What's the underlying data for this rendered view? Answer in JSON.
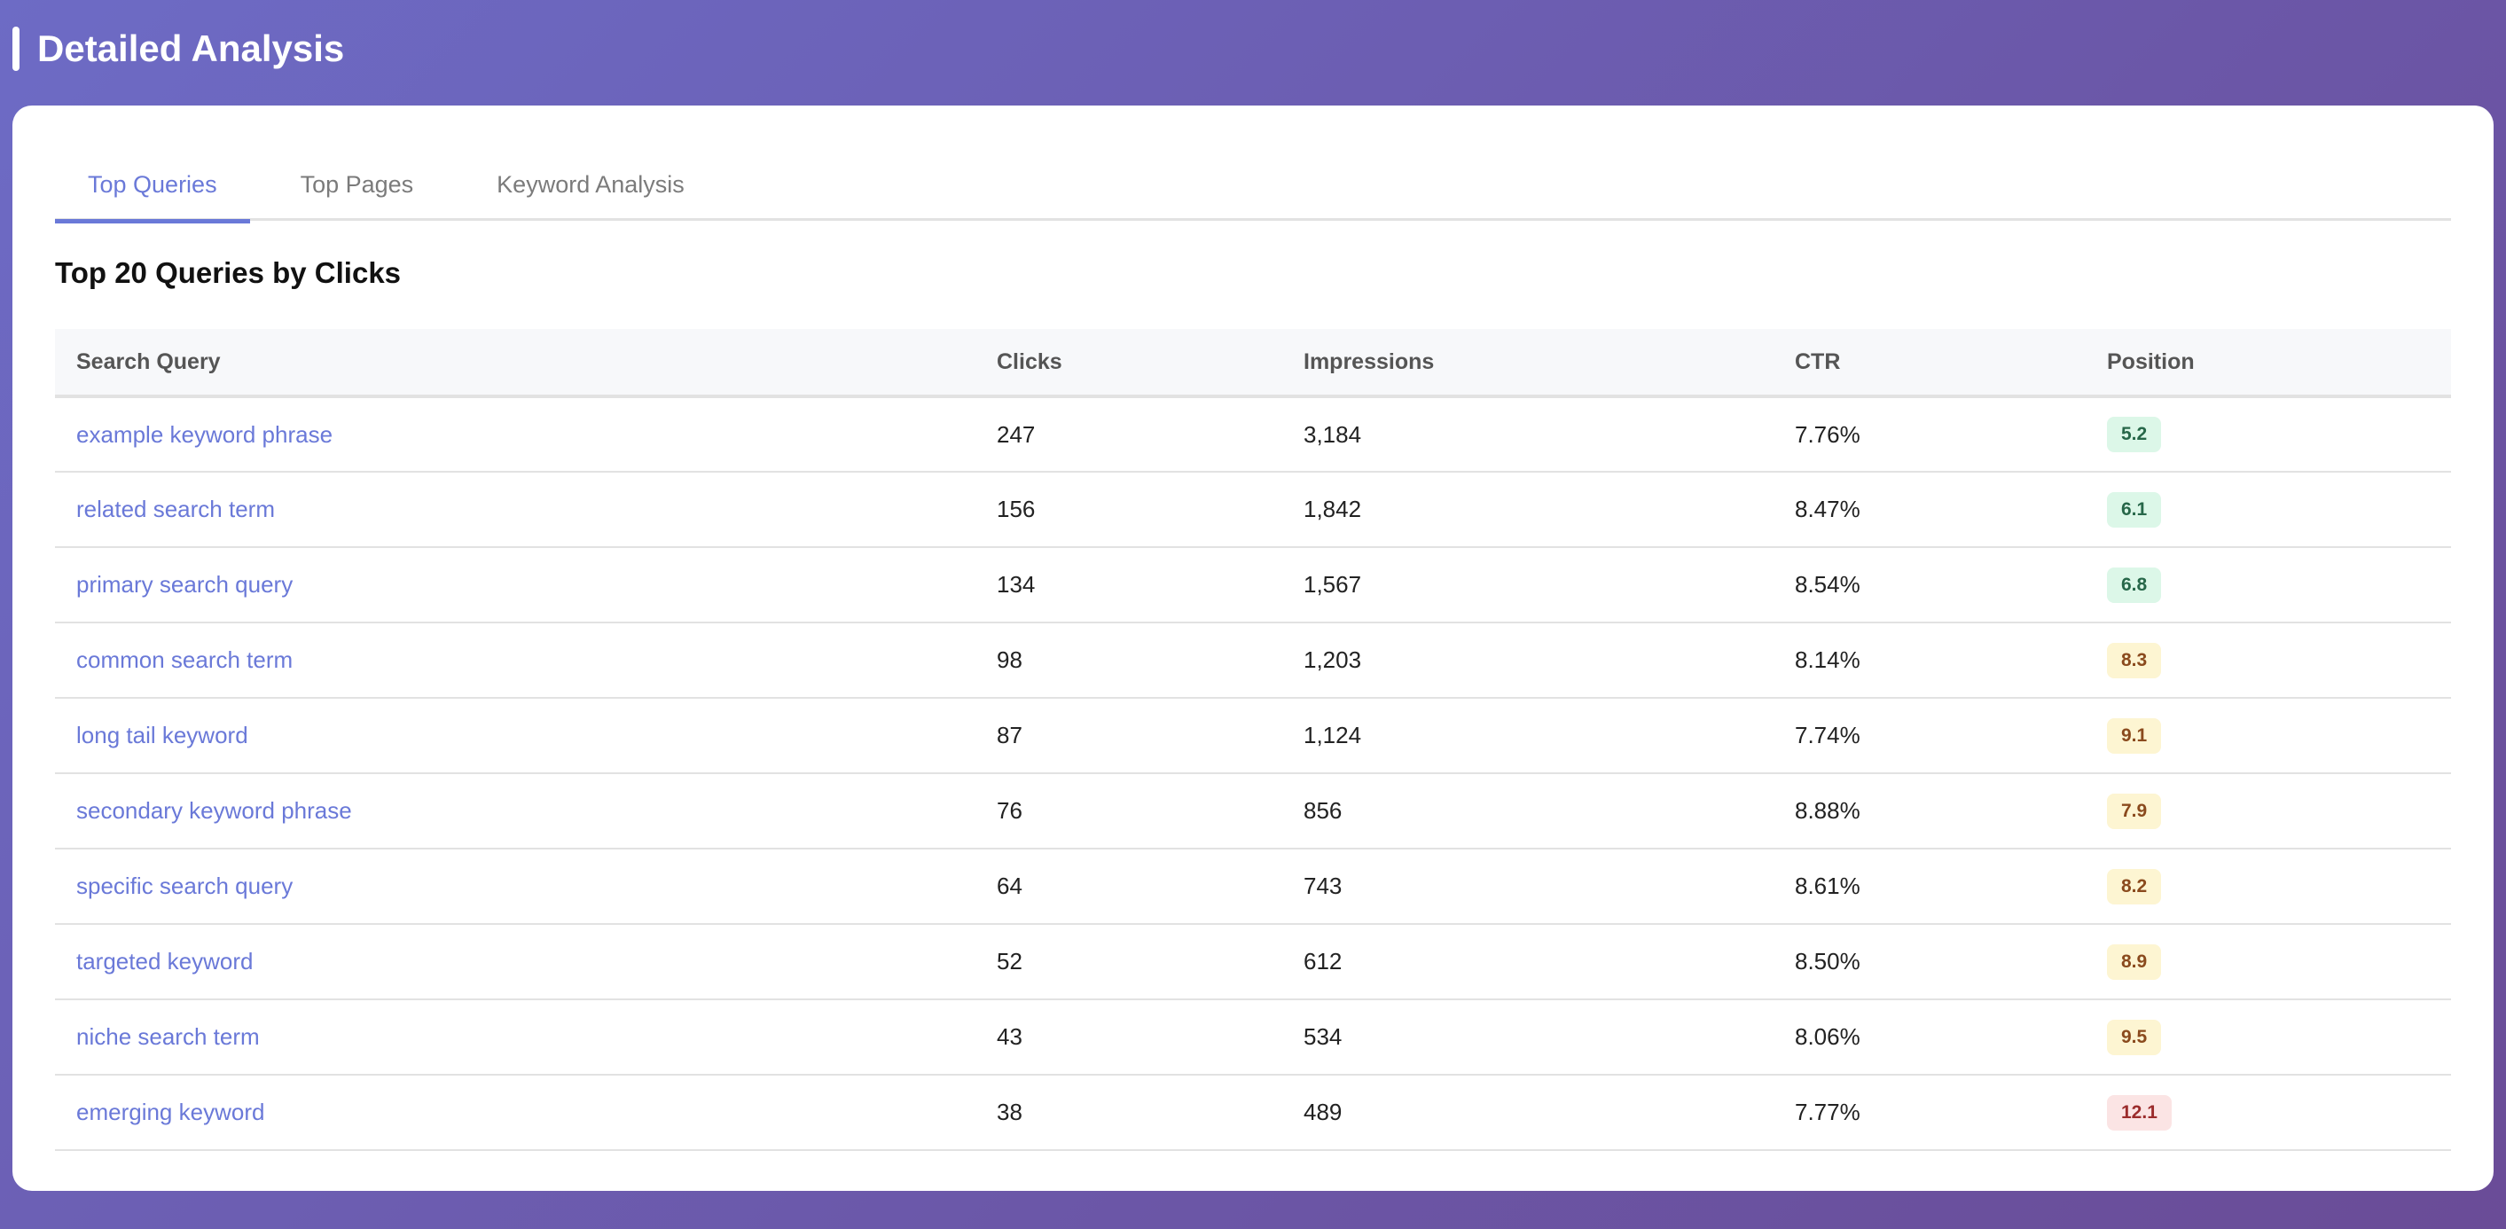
{
  "header": {
    "title": "Detailed Analysis"
  },
  "tabs": [
    {
      "label": "Top Queries",
      "active": true
    },
    {
      "label": "Top Pages",
      "active": false
    },
    {
      "label": "Keyword Analysis",
      "active": false
    }
  ],
  "section": {
    "title": "Top 20 Queries by Clicks"
  },
  "table": {
    "columns": [
      "Search Query",
      "Clicks",
      "Impressions",
      "CTR",
      "Position"
    ],
    "rows": [
      {
        "query": "example keyword phrase",
        "clicks": "247",
        "impressions": "3,184",
        "ctr": "7.76%",
        "position": "5.2",
        "level": "good"
      },
      {
        "query": "related search term",
        "clicks": "156",
        "impressions": "1,842",
        "ctr": "8.47%",
        "position": "6.1",
        "level": "good"
      },
      {
        "query": "primary search query",
        "clicks": "134",
        "impressions": "1,567",
        "ctr": "8.54%",
        "position": "6.8",
        "level": "good"
      },
      {
        "query": "common search term",
        "clicks": "98",
        "impressions": "1,203",
        "ctr": "8.14%",
        "position": "8.3",
        "level": "mid"
      },
      {
        "query": "long tail keyword",
        "clicks": "87",
        "impressions": "1,124",
        "ctr": "7.74%",
        "position": "9.1",
        "level": "mid"
      },
      {
        "query": "secondary keyword phrase",
        "clicks": "76",
        "impressions": "856",
        "ctr": "8.88%",
        "position": "7.9",
        "level": "mid"
      },
      {
        "query": "specific search query",
        "clicks": "64",
        "impressions": "743",
        "ctr": "8.61%",
        "position": "8.2",
        "level": "mid"
      },
      {
        "query": "targeted keyword",
        "clicks": "52",
        "impressions": "612",
        "ctr": "8.50%",
        "position": "8.9",
        "level": "mid"
      },
      {
        "query": "niche search term",
        "clicks": "43",
        "impressions": "534",
        "ctr": "8.06%",
        "position": "9.5",
        "level": "mid"
      },
      {
        "query": "emerging keyword",
        "clicks": "38",
        "impressions": "489",
        "ctr": "7.77%",
        "position": "12.1",
        "level": "bad"
      }
    ]
  },
  "colors": {
    "accent": "#6a79d8",
    "badge_good_bg": "#dcf7e8",
    "badge_good_text": "#276749",
    "badge_mid_bg": "#fdf5d2",
    "badge_mid_text": "#8a4a1d",
    "badge_bad_bg": "#fbe4e4",
    "badge_bad_text": "#9b2c2c"
  }
}
